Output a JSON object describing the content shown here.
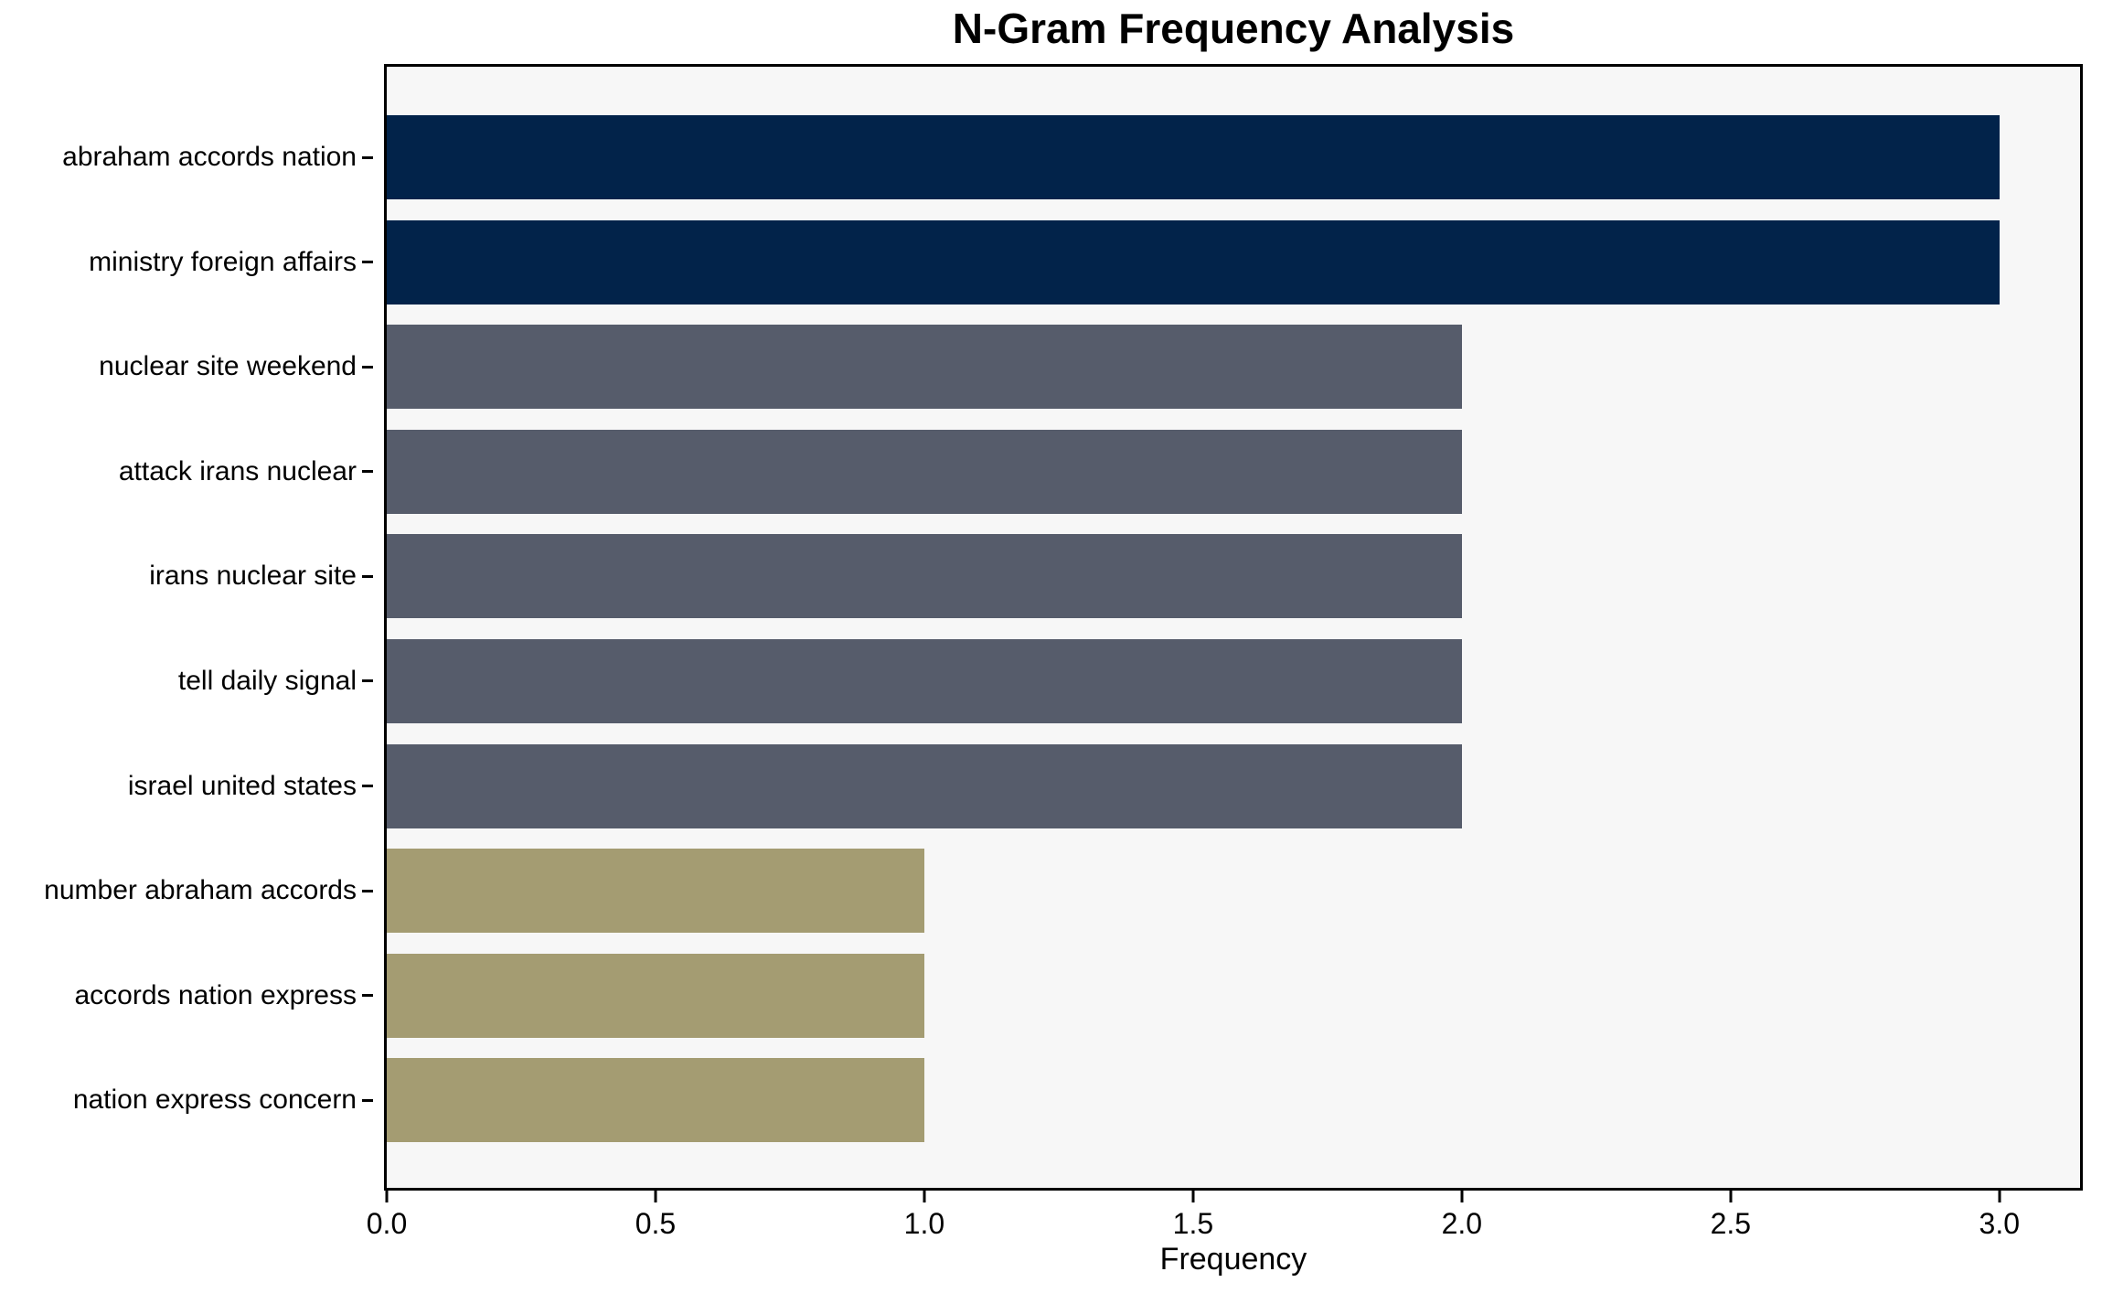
{
  "chart_data": {
    "type": "bar",
    "orientation": "horizontal",
    "title": "N-Gram Frequency Analysis",
    "xlabel": "Frequency",
    "ylabel": "",
    "categories": [
      "abraham accords nation",
      "ministry foreign affairs",
      "nuclear site weekend",
      "attack irans nuclear",
      "irans nuclear site",
      "tell daily signal",
      "israel united states",
      "number abraham accords",
      "accords nation express",
      "nation express concern"
    ],
    "values": [
      3,
      3,
      2,
      2,
      2,
      2,
      2,
      1,
      1,
      1
    ],
    "bar_colors": [
      "#02234A",
      "#02234A",
      "#565C6B",
      "#565C6B",
      "#565C6B",
      "#565C6B",
      "#565C6B",
      "#A49C72",
      "#A49C72",
      "#A49C72"
    ],
    "xlim": [
      0,
      3.15
    ],
    "xticks": [
      0.0,
      0.5,
      1.0,
      1.5,
      2.0,
      2.5,
      3.0
    ],
    "xtick_labels": [
      "0.0",
      "0.5",
      "1.0",
      "1.5",
      "2.0",
      "2.5",
      "3.0"
    ],
    "grid": false,
    "legend": null
  },
  "colors": {
    "figure_background": "#ffffff",
    "plot_background": "#f7f7f7",
    "axis_border": "#000000",
    "text": "#000000"
  }
}
